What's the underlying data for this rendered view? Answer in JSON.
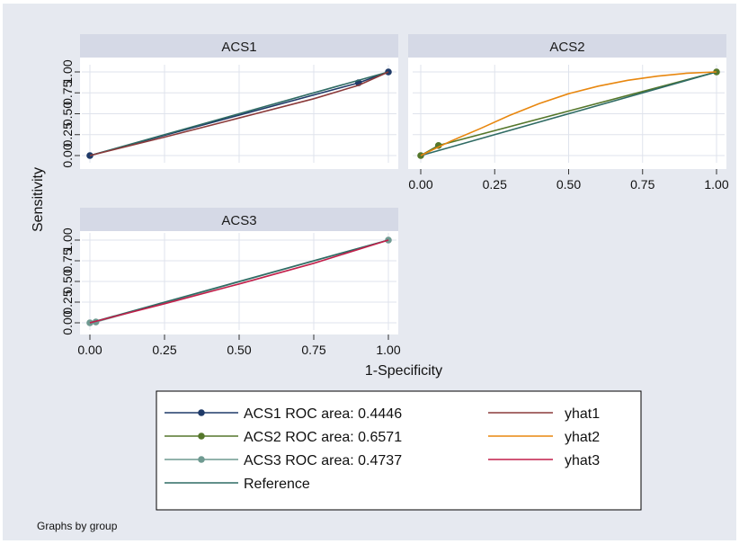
{
  "footnote": "Graphs by group",
  "colors": {
    "background": "#e6e9f0",
    "panel_bg": "#ffffff",
    "strip_bg": "#d5d9e6",
    "grid": "#dfe3ec",
    "ACS1": "#1f3a68",
    "ACS2": "#55772b",
    "ACS3": "#6f9a91",
    "Reference": "#2f6b64",
    "yhat1": "#8b3a3a",
    "yhat2": "#e8870f",
    "yhat3": "#c21f4a"
  },
  "chart_data": {
    "type": "line",
    "xlabel": "1-Specificity",
    "ylabel": "Sensitivity",
    "xlim": [
      0,
      1
    ],
    "ylim": [
      0,
      1
    ],
    "xticks": [
      "0.00",
      "0.25",
      "0.50",
      "0.75",
      "1.00"
    ],
    "yticks": [
      "0.00",
      "0.25",
      "0.50",
      "0.75",
      "1.00"
    ],
    "grid": true,
    "panels": [
      {
        "title": "ACS1",
        "series": [
          {
            "name": "ACS1 ROC area: 0.4446",
            "x": [
              0,
              0.9,
              1
            ],
            "y": [
              0,
              0.87,
              1
            ]
          },
          {
            "name": "Reference",
            "x": [
              0,
              1
            ],
            "y": [
              0,
              1
            ]
          },
          {
            "name": "yhat1",
            "x": [
              0,
              0.25,
              0.5,
              0.75,
              0.9,
              1
            ],
            "y": [
              0,
              0.22,
              0.45,
              0.68,
              0.84,
              1
            ]
          }
        ]
      },
      {
        "title": "ACS2",
        "series": [
          {
            "name": "ACS2 ROC area: 0.6571",
            "x": [
              0,
              0.06,
              1
            ],
            "y": [
              0,
              0.12,
              1
            ]
          },
          {
            "name": "Reference",
            "x": [
              0,
              1
            ],
            "y": [
              0,
              1
            ]
          },
          {
            "name": "yhat2",
            "x": [
              0,
              0.1,
              0.2,
              0.3,
              0.4,
              0.5,
              0.6,
              0.7,
              0.8,
              0.9,
              1
            ],
            "y": [
              0,
              0.17,
              0.32,
              0.48,
              0.62,
              0.74,
              0.83,
              0.9,
              0.95,
              0.985,
              1
            ]
          }
        ]
      },
      {
        "title": "ACS3",
        "series": [
          {
            "name": "ACS3 ROC area: 0.4737",
            "x": [
              0,
              0.02,
              1
            ],
            "y": [
              0,
              0.01,
              1
            ]
          },
          {
            "name": "Reference",
            "x": [
              0,
              1
            ],
            "y": [
              0,
              1
            ]
          },
          {
            "name": "yhat3",
            "x": [
              0,
              0.25,
              0.5,
              0.75,
              1
            ],
            "y": [
              0,
              0.23,
              0.47,
              0.72,
              1
            ]
          }
        ]
      }
    ],
    "legend": {
      "position": "bottom",
      "columns": [
        [
          "ACS1 ROC area: 0.4446",
          "ACS2 ROC area: 0.6571",
          "ACS3 ROC area: 0.4737",
          "Reference"
        ],
        [
          "yhat1",
          "yhat2",
          "yhat3"
        ]
      ]
    }
  }
}
